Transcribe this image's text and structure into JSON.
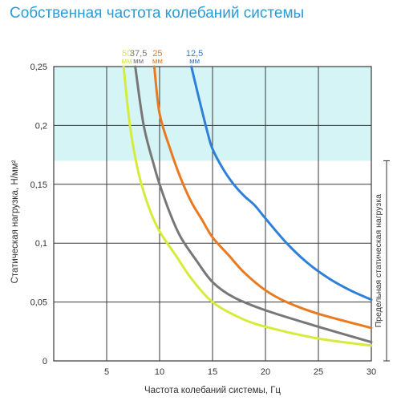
{
  "title": "Собственная частота колебаний системы",
  "chart_data": {
    "type": "line",
    "title": "Собственная частота колебаний системы",
    "xlabel": "Частота колебаний системы, Гц",
    "ylabel": "Статическая нагрузка, Н/мм²",
    "xlim": [
      0,
      30
    ],
    "ylim": [
      0,
      0.25
    ],
    "x_ticks": [
      0,
      5,
      10,
      15,
      20,
      25,
      30
    ],
    "x_tick_labels": [
      "5",
      "10",
      "15",
      "20",
      "25",
      "30"
    ],
    "y_ticks": [
      0,
      0.05,
      0.1,
      0.15,
      0.2,
      0.25
    ],
    "y_tick_labels": [
      "0",
      "0,05",
      "0,1",
      "0,15",
      "0,2",
      "0,25"
    ],
    "grid": true,
    "shaded_region": {
      "y_from": 0.17,
      "y_to": 0.25,
      "color": "#d4f4f5"
    },
    "max_load_label": "Предельная статическая нагрузка",
    "series": [
      {
        "name": "50",
        "unit": "мм",
        "color": "#d6eb3c",
        "x": [
          6.6,
          7.2,
          8.0,
          9.0,
          10.0,
          11.5,
          13.0,
          15.0,
          17.5,
          20.0,
          25.0,
          30.0
        ],
        "y": [
          0.25,
          0.2,
          0.16,
          0.13,
          0.11,
          0.09,
          0.07,
          0.05,
          0.037,
          0.029,
          0.019,
          0.013
        ]
      },
      {
        "name": "37,5",
        "unit": "мм",
        "color": "#777777",
        "x": [
          7.7,
          8.5,
          9.5,
          10.0,
          11.0,
          12.0,
          13.5,
          15.0,
          17.0,
          20.0,
          25.0,
          30.0
        ],
        "y": [
          0.25,
          0.2,
          0.165,
          0.15,
          0.125,
          0.105,
          0.085,
          0.067,
          0.054,
          0.043,
          0.029,
          0.016
        ]
      },
      {
        "name": "25",
        "unit": "мм",
        "color": "#e87a22",
        "x": [
          9.5,
          10.0,
          11.0,
          12.0,
          13.0,
          14.0,
          15.0,
          16.5,
          18.0,
          20.0,
          22.0,
          25.0,
          30.0
        ],
        "y": [
          0.25,
          0.21,
          0.18,
          0.155,
          0.135,
          0.12,
          0.105,
          0.09,
          0.075,
          0.06,
          0.05,
          0.04,
          0.028
        ]
      },
      {
        "name": "12,5",
        "unit": "мм",
        "color": "#2f80d8",
        "x": [
          13.0,
          13.8,
          14.5,
          15.0,
          16.0,
          17.0,
          18.0,
          19.0,
          20.0,
          22.0,
          24.0,
          26.0,
          28.0,
          30.0
        ],
        "y": [
          0.25,
          0.22,
          0.195,
          0.18,
          0.163,
          0.15,
          0.14,
          0.132,
          0.121,
          0.1,
          0.083,
          0.07,
          0.06,
          0.052
        ]
      }
    ]
  }
}
